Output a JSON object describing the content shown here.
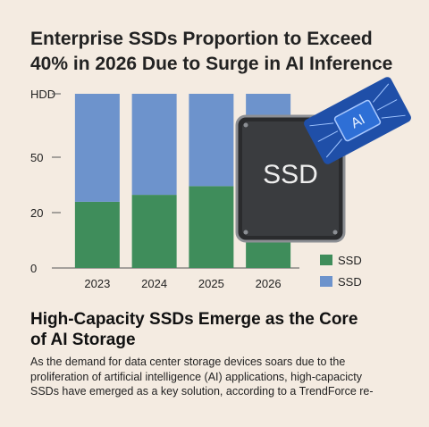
{
  "title_line1": "Enterprise SSDs Proportion to Exceed",
  "title_line2": "40% in 2026 Due to Surge in AI Inference",
  "subheading_line1": "High-Capacity SSDs Emerge as the Core",
  "subheading_line2": "of AI Storage",
  "body_lines": [
    "As the demand for data center storage devices soars due to the",
    "proliferation of artificial intelligence (AI) applications, high-capacicty",
    "SSDs have emerged as a key solution, according to a TrendForce re-"
  ],
  "illustration": {
    "ssd_label": "SSD",
    "chip_label": "AI"
  },
  "colors": {
    "background": "#f4ebe1",
    "ssd_green": "#3f8d5b",
    "hdd_blue": "#6d93cc"
  },
  "chart_data": {
    "type": "bar",
    "stacked": true,
    "categories": [
      "2023",
      "2024",
      "2025",
      "2026"
    ],
    "y_tick_labels": [
      "0",
      "20",
      "50",
      "HDD"
    ],
    "series": [
      {
        "name": "SSD",
        "values": [
          38,
          42,
          47,
          50
        ],
        "color": "#3f8d5b"
      },
      {
        "name": "",
        "values": [
          62,
          58,
          53,
          50
        ],
        "color": "#6d93cc"
      }
    ],
    "ylim": [
      0,
      100
    ],
    "legend": {
      "position": "bottom-right",
      "entries": [
        {
          "label": "SSD",
          "color": "#3f8d5b"
        },
        {
          "label": "SSD",
          "color": "#6d93cc"
        }
      ]
    }
  }
}
